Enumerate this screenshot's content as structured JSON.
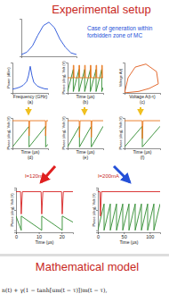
{
  "headings": [
    "Experimental setup",
    "Mathematical model"
  ],
  "note": "Case of generation within forbidden zone of MC",
  "currents": [
    "I=120mA",
    "I=200mA"
  ],
  "formula": "n(t) + γ(1 − tanh[um(t − τ)])m(t − τ),",
  "chart_data": [
    {
      "type": "line",
      "tick_labels": false,
      "xlim": [
        0,
        10
      ],
      "ylim": [
        0,
        1.1
      ],
      "series": [
        {
          "color": "#2450d8",
          "x": [
            0,
            1,
            2,
            3,
            4,
            5,
            6,
            7,
            8,
            9,
            10
          ],
          "values": [
            0.05,
            0.12,
            0.3,
            0.62,
            0.9,
            1.0,
            0.84,
            0.5,
            0.26,
            0.1,
            0.05
          ]
        }
      ]
    },
    {
      "type": "line",
      "label": "(a)",
      "x_label": "Frequency (GHz)",
      "y_label": "Power (dBm)",
      "tick_labels": false,
      "xlim": [
        0,
        20
      ],
      "ylim": [
        -90,
        -10
      ],
      "series": [
        {
          "color": "#2450d8",
          "x": [
            0,
            2,
            4,
            6,
            8,
            9,
            10,
            11,
            12,
            14,
            16,
            18,
            20
          ],
          "values": [
            -80,
            -78,
            -75,
            -70,
            -60,
            -45,
            -20,
            -45,
            -62,
            -72,
            -76,
            -79,
            -80
          ]
        }
      ]
    },
    {
      "type": "line",
      "label": "(b)",
      "x_label": "Time (µs)",
      "y_label": "Phase (deg), Volt (V)",
      "tick_labels": false,
      "xlim": [
        0,
        5
      ],
      "ylim": [
        -1.1,
        1.1
      ],
      "series": [
        {
          "color": "#2e8b2e",
          "x": [
            0,
            0.8,
            0.8,
            1.6,
            1.6,
            2.4,
            2.4,
            3.2,
            3.2,
            4,
            4,
            4.8,
            4.8,
            5
          ],
          "values": [
            -1,
            0.6,
            -1,
            0.6,
            -1,
            0.6,
            -1,
            0.6,
            -1,
            0.6,
            -1,
            0.6,
            -1,
            -0.7
          ]
        },
        {
          "color": "#e8761a",
          "x": [
            0,
            0.78,
            0.8,
            0.88,
            0.9,
            1.58,
            1.6,
            1.68,
            1.7,
            2.38,
            2.4,
            2.48,
            2.5,
            3.18,
            3.2,
            3.28,
            3.3,
            3.98,
            4,
            4.08,
            4.1,
            4.78,
            4.8,
            4.88,
            4.9,
            5
          ],
          "values": [
            0,
            0,
            0.9,
            0.9,
            0,
            0,
            0.9,
            0.9,
            0,
            0,
            0.9,
            0.9,
            0,
            0,
            0.9,
            0.9,
            0,
            0,
            0.9,
            0.9,
            0,
            0,
            0.9,
            0.9,
            0,
            0
          ]
        }
      ]
    },
    {
      "type": "line",
      "label": "(c)",
      "x_label": "Voltage A(t-τ)",
      "y_label": "Voltage A(t)",
      "tick_labels": false,
      "xlim": [
        0,
        1
      ],
      "ylim": [
        0,
        1
      ],
      "series": [
        {
          "color": "#e05a1a",
          "x": [
            0,
            0.1,
            0.3,
            0.6,
            0.9,
            0.95,
            0.7,
            0.4,
            0.15,
            0.05,
            0
          ],
          "values": [
            0,
            0.5,
            0.85,
            0.95,
            0.7,
            0.3,
            0.15,
            0.05,
            0.02,
            0.01,
            0
          ]
        }
      ]
    },
    {
      "type": "line",
      "label": "(d)",
      "x_label": "Time (µs)",
      "y_label": "Phase (deg), Volt (V)",
      "tick_labels": false,
      "xlim": [
        0,
        3
      ],
      "ylim": [
        -1.1,
        1.1
      ],
      "series": [
        {
          "color": "#2e8b2e",
          "x": [
            0,
            1.4,
            1.4,
            2.8,
            2.8,
            3
          ],
          "values": [
            -1,
            0.5,
            -1,
            0.5,
            -1,
            -0.8
          ]
        },
        {
          "color": "#e8761a",
          "x": [
            0,
            1.38,
            1.4,
            1.45,
            2.78,
            2.8,
            2.85,
            3
          ],
          "values": [
            0.9,
            0.9,
            -0.2,
            0.9,
            0.9,
            -0.2,
            0.9,
            0.9
          ]
        }
      ]
    },
    {
      "type": "line",
      "label": "(e)",
      "x_label": "Time (µs)",
      "y_label": "Phase (deg), Volt (V)",
      "tick_labels": false,
      "xlim": [
        0,
        3
      ],
      "ylim": [
        -1.1,
        1.1
      ],
      "series": [
        {
          "color": "#2e8b2e",
          "x": [
            0,
            1,
            1,
            2,
            2,
            3
          ],
          "values": [
            -1,
            0.5,
            -1,
            0.5,
            -1,
            0.5
          ]
        },
        {
          "color": "#e8761a",
          "x": [
            0,
            0.98,
            1,
            1.05,
            1.98,
            2,
            2.05,
            3
          ],
          "values": [
            0.9,
            0.9,
            -0.3,
            0.9,
            0.9,
            -0.3,
            0.9,
            0.9
          ]
        }
      ]
    },
    {
      "type": "line",
      "label": "(f)",
      "x_label": "Time (µs)",
      "y_label": "Phase (deg), Volt (V)",
      "tick_labels": false,
      "xlim": [
        0,
        3
      ],
      "ylim": [
        -1.1,
        1.1
      ],
      "series": [
        {
          "color": "#2e8b2e",
          "x": [
            0,
            1.5,
            1.5,
            3
          ],
          "values": [
            -1,
            0.5,
            -1,
            0.5
          ]
        },
        {
          "color": "#e8761a",
          "x": [
            0,
            1.48,
            1.5,
            1.56,
            3
          ],
          "values": [
            0.9,
            0.9,
            -0.4,
            0.9,
            0.9
          ]
        }
      ]
    },
    {
      "type": "line",
      "x_label": "Time (µs)",
      "y_label": "Phase (deg), Volt (V)",
      "tick_labels": "x",
      "xlim": [
        0,
        25
      ],
      "ylim": [
        -1.1,
        1.1
      ],
      "xticks": [
        0,
        10,
        20
      ],
      "yticks": [
        -1,
        0,
        1
      ],
      "series": [
        {
          "color": "#2e8b2e",
          "x": [
            0,
            2.3,
            2.3,
            11.3,
            11.3,
            20.3,
            20.3,
            25
          ],
          "values": [
            -0.3,
            -1,
            -0.3,
            -1,
            -0.3,
            -1,
            -0.3,
            -0.6
          ]
        },
        {
          "color": "#d62020",
          "x": [
            0,
            2,
            2.3,
            2.8,
            11,
            11.3,
            11.8,
            20,
            20.3,
            20.8,
            25
          ],
          "values": [
            0.9,
            0.9,
            -0.2,
            0.9,
            0.9,
            -0.2,
            0.9,
            0.9,
            -0.2,
            0.9,
            0.9
          ]
        }
      ]
    },
    {
      "type": "line",
      "x_label": "Time (µs)",
      "y_label": "Phase (deg), Volt (V)",
      "tick_labels": "x",
      "xlim": [
        0,
        120
      ],
      "ylim": [
        -1.1,
        1.1
      ],
      "xticks": [
        0,
        50,
        100
      ],
      "yticks": [
        -1,
        0,
        1
      ],
      "series": [
        {
          "color": "#2e8b2e",
          "x": [
            0,
            12,
            12,
            24,
            24,
            36,
            36,
            48,
            48,
            60,
            60,
            72,
            72,
            84,
            84,
            96,
            96,
            108,
            108,
            120
          ],
          "values": [
            -1,
            0.3,
            -1,
            0.3,
            -1,
            0.3,
            -1,
            0.3,
            -1,
            0.3,
            -1,
            0.3,
            -1,
            0.3,
            -1,
            0.3,
            -1,
            0.3,
            -1,
            0.3
          ]
        },
        {
          "color": "#d62020",
          "x": [
            0,
            4,
            5,
            7,
            120
          ],
          "values": [
            0.9,
            0.9,
            -0.3,
            0.9,
            0.9
          ]
        }
      ]
    }
  ]
}
